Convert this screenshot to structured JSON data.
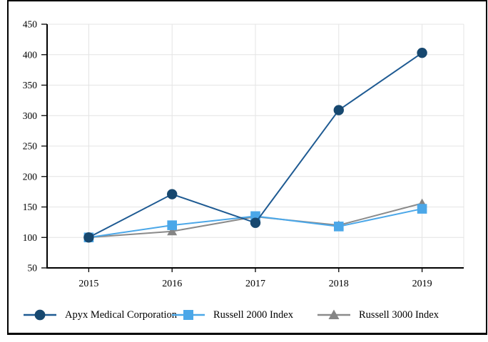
{
  "chart_data": {
    "type": "line",
    "title": "",
    "categories": [
      "2015",
      "2016",
      "2017",
      "2018",
      "2019"
    ],
    "y_ticks": [
      450,
      400,
      350,
      300,
      250,
      200,
      150,
      100,
      50
    ],
    "ylim": [
      50,
      450
    ],
    "grid": true,
    "legend_position": "bottom",
    "series": [
      {
        "name": "Apyx Medical Corporation",
        "marker": "circle",
        "marker_color": "#17486F",
        "line_color": "#1E5A92",
        "values": [
          100,
          171,
          124,
          309,
          403
        ]
      },
      {
        "name": "Russell 2000 Index",
        "marker": "square",
        "marker_color": "#4BA7E8",
        "line_color": "#4BA7E8",
        "values": [
          100,
          120,
          135,
          118,
          147
        ]
      },
      {
        "name": "Russell 3000 Index",
        "marker": "triangle",
        "marker_color": "#858585",
        "line_color": "#8A8A8A",
        "values": [
          100,
          110,
          134,
          120,
          156
        ]
      }
    ]
  },
  "colors": {
    "axis": "#000000",
    "gridline": "#E4E4E4",
    "frame_border": "#000000",
    "background": "#FFFFFF",
    "text": "#000000"
  }
}
